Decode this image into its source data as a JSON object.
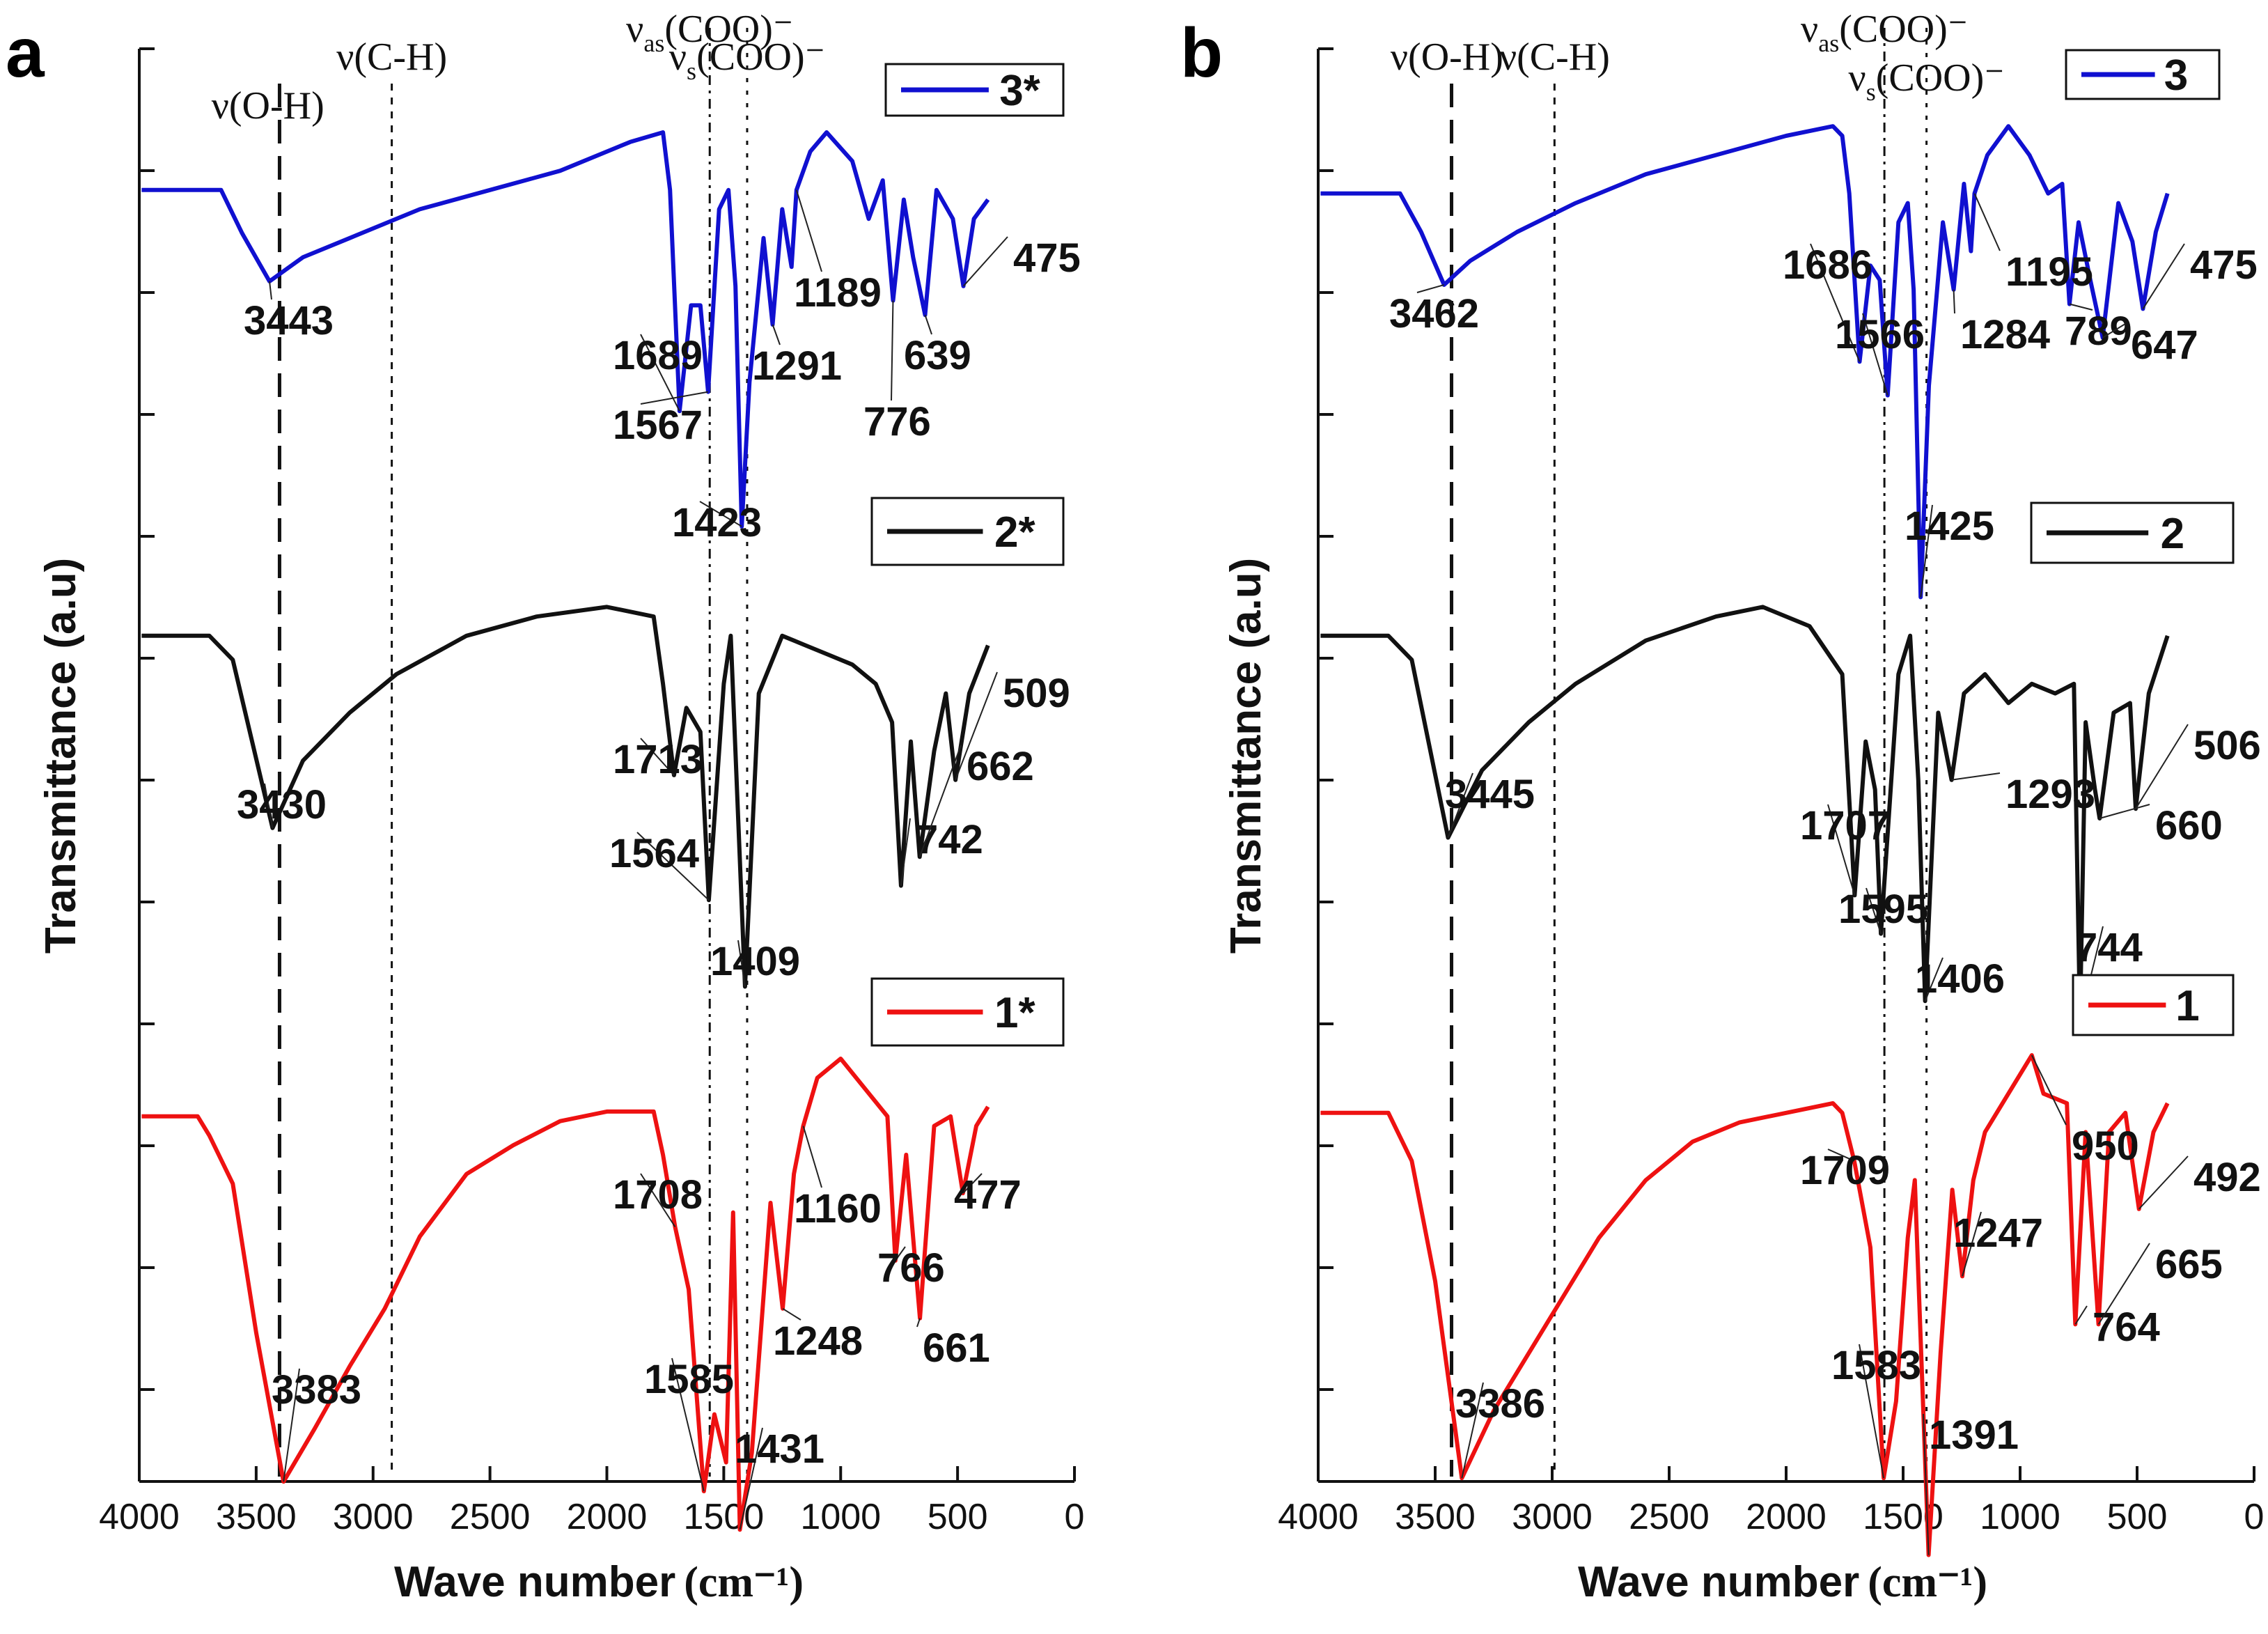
{
  "chart_data": [
    {
      "panel": "a",
      "type": "line",
      "xlabel": "Wave number",
      "xlabel_unit": "(cm⁻¹)",
      "ylabel": "Transmittance (a.u)",
      "xlim": [
        4000,
        0
      ],
      "xticks": [
        "4000",
        "3500",
        "3000",
        "2500",
        "2000",
        "1500",
        "1000",
        "500",
        "0"
      ],
      "band_labels": [
        {
          "text": "ν(O-H)",
          "x": 3450
        },
        {
          "text": "ν(C-H)",
          "x": 2920
        },
        {
          "text": "ν",
          "sub": "as",
          "rest": "(COO)⁻",
          "x": 1560
        },
        {
          "text": "ν",
          "sub": "s",
          "rest": "(COO)⁻",
          "x": 1400
        }
      ],
      "reference_lines": [
        3400,
        2920,
        1560,
        1400
      ],
      "series": [
        {
          "name": "3*",
          "color": "#1010d0",
          "x": [
            3990,
            3650,
            3560,
            3443,
            3300,
            3100,
            2800,
            2500,
            2200,
            1900,
            1760,
            1730,
            1689,
            1640,
            1600,
            1567,
            1520,
            1480,
            1450,
            1423,
            1390,
            1330,
            1291,
            1250,
            1210,
            1189,
            1130,
            1060,
            950,
            880,
            820,
            776,
            730,
            690,
            639,
            590,
            520,
            475,
            430,
            370
          ],
          "y": [
            100,
            100,
            91,
            81,
            86,
            90,
            96,
            100,
            104,
            110,
            112,
            100,
            54,
            76,
            76,
            58,
            96,
            100,
            80,
            30,
            60,
            90,
            72,
            96,
            84,
            100,
            108,
            112,
            106,
            94,
            102,
            77,
            98,
            86,
            74,
            100,
            94,
            80,
            94,
            98
          ]
        },
        {
          "name": "2*",
          "color": "#111111",
          "x": [
            3990,
            3700,
            3600,
            3430,
            3300,
            3100,
            2900,
            2600,
            2300,
            2000,
            1800,
            1760,
            1713,
            1660,
            1600,
            1564,
            1500,
            1470,
            1440,
            1409,
            1350,
            1250,
            1150,
            1050,
            950,
            850,
            780,
            742,
            700,
            662,
            600,
            550,
            509,
            450,
            370
          ],
          "y": [
            100,
            100,
            95,
            60,
            74,
            84,
            92,
            100,
            104,
            106,
            104,
            90,
            71,
            85,
            80,
            45,
            90,
            100,
            64,
            27,
            88,
            100,
            98,
            96,
            94,
            90,
            82,
            48,
            78,
            54,
            76,
            88,
            70,
            88,
            98
          ]
        },
        {
          "name": "1*",
          "color": "#ee1111",
          "x": [
            3990,
            3750,
            3700,
            3600,
            3500,
            3383,
            3250,
            3100,
            2950,
            2800,
            2600,
            2400,
            2200,
            2000,
            1800,
            1760,
            1708,
            1650,
            1585,
            1540,
            1490,
            1460,
            1431,
            1380,
            1300,
            1248,
            1200,
            1160,
            1100,
            1000,
            900,
            800,
            766,
            720,
            661,
            600,
            530,
            477,
            420,
            370
          ],
          "y": [
            100,
            100,
            96,
            86,
            55,
            24,
            35,
            48,
            60,
            75,
            88,
            94,
            99,
            101,
            101,
            92,
            77,
            64,
            22,
            38,
            28,
            80,
            14,
            30,
            82,
            60,
            88,
            98,
            108,
            112,
            106,
            100,
            70,
            92,
            58,
            98,
            100,
            84,
            98,
            102
          ]
        }
      ],
      "annotations": {
        "3*": [
          "3443",
          "1689",
          "1567",
          "1423",
          "1291",
          "1189",
          "776",
          "639",
          "475"
        ],
        "2*": [
          "3430",
          "1713",
          "1564",
          "1409",
          "742",
          "662",
          "509"
        ],
        "1*": [
          "3383",
          "1708",
          "1585",
          "1431",
          "1248",
          "1160",
          "766",
          "661",
          "477"
        ]
      }
    },
    {
      "panel": "b",
      "type": "line",
      "xlabel": "Wave number",
      "xlabel_unit": "(cm⁻¹)",
      "ylabel": "Transmittance (a.u)",
      "xlim": [
        4000,
        0
      ],
      "xticks": [
        "4000",
        "3500",
        "3000",
        "2500",
        "2000",
        "1500",
        "1000",
        "500",
        "0"
      ],
      "band_labels": [
        {
          "text": "ν(O-H)",
          "x": 3450
        },
        {
          "text": "ν(C-H)",
          "x": 2990
        },
        {
          "text": "ν",
          "sub": "as",
          "rest": "(COO)⁻",
          "x": 1580
        },
        {
          "text": "ν",
          "sub": "s",
          "rest": "(COO)⁻",
          "x": 1400
        }
      ],
      "reference_lines": [
        3430,
        2990,
        1580,
        1400
      ],
      "series": [
        {
          "name": "3",
          "color": "#1010d0",
          "x": [
            3990,
            3650,
            3560,
            3462,
            3350,
            3150,
            2900,
            2600,
            2300,
            2000,
            1800,
            1760,
            1730,
            1686,
            1640,
            1600,
            1566,
            1520,
            1480,
            1455,
            1425,
            1390,
            1330,
            1284,
            1240,
            1210,
            1195,
            1140,
            1050,
            960,
            880,
            820,
            789,
            750,
            700,
            647,
            580,
            520,
            475,
            420,
            370
          ],
          "y": [
            100,
            100,
            92,
            81,
            86,
            92,
            98,
            104,
            108,
            112,
            114,
            112,
            100,
            65,
            85,
            82,
            58,
            94,
            98,
            80,
            16,
            60,
            94,
            80,
            102,
            88,
            100,
            108,
            114,
            108,
            100,
            102,
            77,
            94,
            82,
            70,
            98,
            90,
            76,
            92,
            100
          ]
        },
        {
          "name": "2",
          "color": "#111111",
          "x": [
            3990,
            3700,
            3600,
            3445,
            3300,
            3100,
            2900,
            2600,
            2300,
            2100,
            1900,
            1760,
            1707,
            1660,
            1620,
            1595,
            1520,
            1470,
            1435,
            1406,
            1350,
            1293,
            1240,
            1150,
            1050,
            950,
            850,
            770,
            744,
            720,
            680,
            660,
            600,
            530,
            506,
            450,
            370
          ],
          "y": [
            100,
            100,
            95,
            58,
            72,
            82,
            90,
            99,
            104,
            106,
            102,
            92,
            46,
            78,
            68,
            38,
            92,
            100,
            70,
            24,
            84,
            70,
            88,
            92,
            86,
            90,
            88,
            90,
            20,
            82,
            68,
            62,
            84,
            86,
            64,
            88,
            100
          ]
        },
        {
          "name": "1",
          "color": "#ee1111",
          "x": [
            3990,
            3700,
            3600,
            3500,
            3386,
            3250,
            3100,
            2950,
            2800,
            2600,
            2400,
            2200,
            2000,
            1800,
            1760,
            1709,
            1640,
            1583,
            1530,
            1480,
            1450,
            1391,
            1340,
            1290,
            1247,
            1200,
            1150,
            1050,
            950,
            900,
            800,
            764,
            720,
            665,
            620,
            550,
            492,
            430,
            370
          ],
          "y": [
            100,
            100,
            90,
            65,
            24,
            38,
            50,
            62,
            74,
            86,
            94,
            98,
            100,
            102,
            100,
            90,
            72,
            24,
            40,
            74,
            86,
            8,
            50,
            84,
            66,
            86,
            96,
            104,
            112,
            104,
            102,
            56,
            96,
            56,
            96,
            100,
            80,
            96,
            102
          ]
        }
      ],
      "annotations": {
        "3": [
          "3462",
          "1686",
          "1566",
          "1425",
          "1284",
          "1195",
          "789",
          "647",
          "475"
        ],
        "2": [
          "3445",
          "1707",
          "1595",
          "1406",
          "1293",
          "744",
          "660",
          "506"
        ],
        "1": [
          "3386",
          "1709",
          "1583",
          "1391",
          "1247",
          "950",
          "764",
          "665",
          "492"
        ]
      }
    }
  ]
}
